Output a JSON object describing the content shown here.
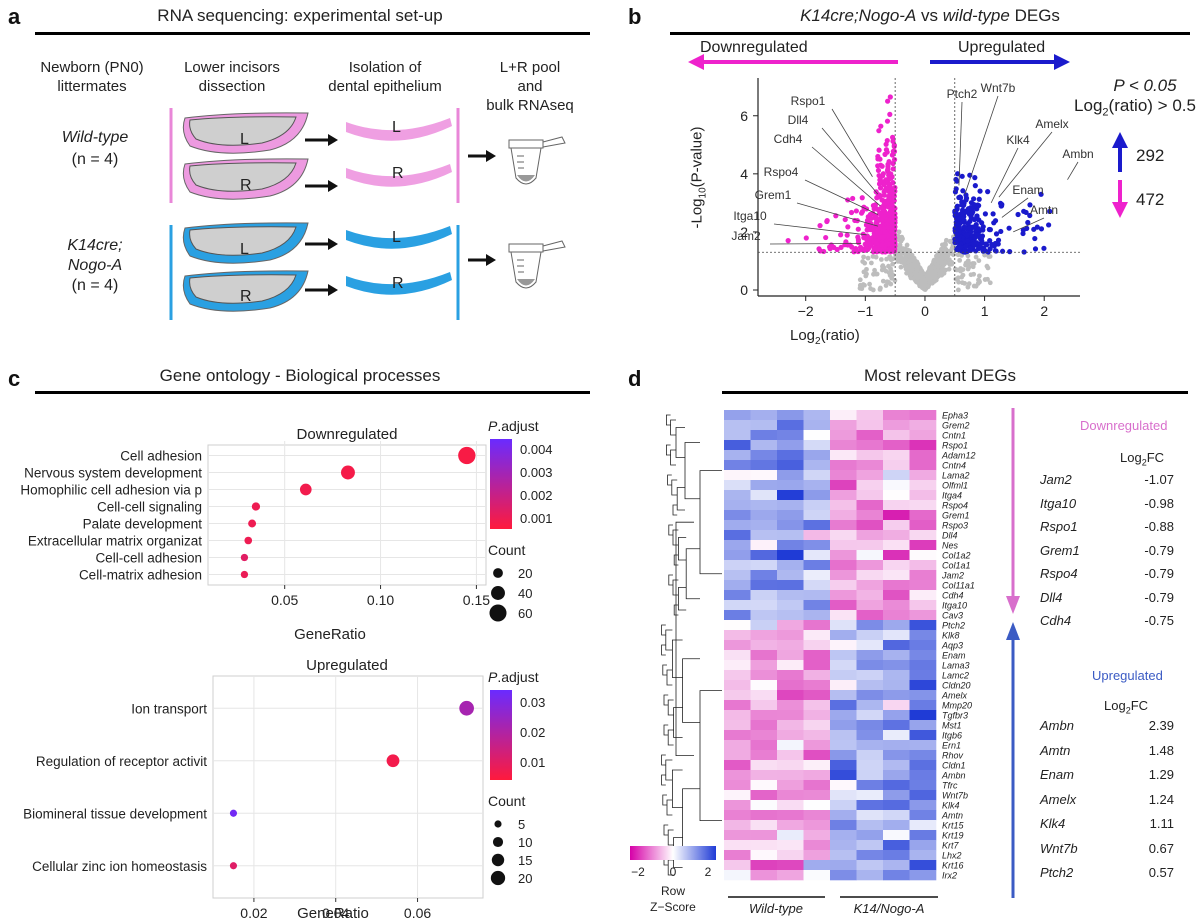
{
  "panel_a": {
    "letter": "a",
    "title": "RNA sequencing: experimental set-up",
    "columns": [
      {
        "line1": "Newborn (PN0)",
        "line2": "littermates"
      },
      {
        "line1": "Lower incisors",
        "line2": "dissection"
      },
      {
        "line1": "Isolation of",
        "line2": "dental epithelium"
      },
      {
        "line1": "L+R pool",
        "line2": "and",
        "line3": "bulk RNAseq"
      }
    ],
    "groups": [
      {
        "name": "Wild-type",
        "n": "(n = 4)",
        "color": "#e987d8"
      },
      {
        "name_line1": "K14cre;",
        "name_line2": "Nogo-A",
        "n": "(n = 4)",
        "color": "#2aa0e2"
      }
    ],
    "left_label": "L",
    "right_label": "R"
  },
  "panel_b": {
    "letter": "b",
    "title_part1": "K14cre;Nogo-A",
    "title_part2": "vs",
    "title_part3": "wild-type",
    "title_part4": "DEGs",
    "down_label": "Downregulated",
    "up_label": "Upregulated",
    "stats_p": "P < 0.05",
    "stats_ratio_base": "Log",
    "stats_ratio_sub": "2",
    "stats_ratio_rest": "(ratio) > 0.5",
    "up_count": "292",
    "down_count": "472",
    "down_color": "#ee22cc",
    "up_color": "#1a1acc",
    "ns_color": "#bdbdbd"
  },
  "chart_data": [
    {
      "type": "scatter",
      "name": "volcano",
      "xlabel_base": "Log",
      "xlabel_sub": "2",
      "xlabel_rest": "(ratio)",
      "ylabel_prefix": "-Log",
      "ylabel_sub": "10",
      "ylabel_rest": "(P-value)",
      "xlim": [
        -2.8,
        2.6
      ],
      "ylim": [
        0,
        7.3
      ],
      "xticks": [
        -2,
        -1,
        0,
        1,
        2
      ],
      "xtick_labels": [
        "−2",
        "−1",
        "0",
        "1",
        "2"
      ],
      "yticks": [
        0,
        2,
        4,
        6
      ],
      "ytick_labels": [
        "0",
        "2",
        "4",
        "6"
      ],
      "thresholds": {
        "x": [
          -0.5,
          0.5
        ],
        "y": 1.3
      },
      "labeled_down": [
        {
          "gene": "Rspo1",
          "x": -0.88,
          "y": 3.9
        },
        {
          "gene": "Dll4",
          "x": -0.79,
          "y": 3.3
        },
        {
          "gene": "Cdh4",
          "x": -0.75,
          "y": 2.9
        },
        {
          "gene": "Rspo4",
          "x": -0.79,
          "y": 2.6
        },
        {
          "gene": "Grem1",
          "x": -0.79,
          "y": 2.2
        },
        {
          "gene": "Itga10",
          "x": -0.98,
          "y": 1.9
        },
        {
          "gene": "Jam2",
          "x": -1.07,
          "y": 1.6
        }
      ],
      "labeled_up": [
        {
          "gene": "Ptch2",
          "x": 0.57,
          "y": 3.6
        },
        {
          "gene": "Wnt7b",
          "x": 0.67,
          "y": 3.3
        },
        {
          "gene": "Klk4",
          "x": 1.11,
          "y": 3.0
        },
        {
          "gene": "Amelx",
          "x": 1.24,
          "y": 3.2
        },
        {
          "gene": "Ambn",
          "x": 2.39,
          "y": 3.8
        },
        {
          "gene": "Enam",
          "x": 1.29,
          "y": 2.5
        },
        {
          "gene": "Amtn",
          "x": 1.48,
          "y": 2.0
        }
      ]
    },
    {
      "type": "scatter",
      "name": "go_downregulated",
      "title": "Downregulated",
      "xlabel": "GeneRatio",
      "xlim": [
        0.01,
        0.155
      ],
      "xticks": [
        0.05,
        0.1,
        0.15
      ],
      "xtick_labels": [
        "0.05",
        "0.10",
        "0.15"
      ],
      "categories": [
        "Cell adhesion",
        "Nervous system development",
        "Homophilic cell adhesion via p",
        "Cell-cell signaling",
        "Palate development",
        "Extracellular matrix organizat",
        "Cell-cell adhesion",
        "Cell-matrix adhesion"
      ],
      "gene_ratio": [
        0.145,
        0.083,
        0.061,
        0.035,
        0.033,
        0.031,
        0.029,
        0.029
      ],
      "count": [
        62,
        40,
        28,
        14,
        13,
        12,
        11,
        11
      ],
      "p_adjust": [
        0.0002,
        0.0003,
        0.0004,
        0.0005,
        0.0005,
        0.0005,
        0.0009,
        0.0006
      ],
      "color_legend_title_base": "P",
      "color_legend_title_rest": ".adjust",
      "color_ticks": [
        "0.004",
        "0.003",
        "0.002",
        "0.001"
      ],
      "color_range": [
        0,
        0.0045
      ],
      "size_legend_title": "Count",
      "size_legend": [
        "20",
        "40",
        "60"
      ]
    },
    {
      "type": "scatter",
      "name": "go_upregulated",
      "title": "Upregulated",
      "xlabel": "GeneRatio",
      "xlim": [
        0.01,
        0.076
      ],
      "xticks": [
        0.02,
        0.04,
        0.06
      ],
      "xtick_labels": [
        "0.02",
        "0.04",
        "0.06"
      ],
      "categories": [
        "Ion transport",
        "Regulation of receptor activit",
        "Biomineral tissue development",
        "Cellular zinc ion homeostasis"
      ],
      "gene_ratio": [
        0.072,
        0.054,
        0.015,
        0.015
      ],
      "count": [
        21,
        16,
        5,
        5
      ],
      "p_adjust": [
        0.022,
        0.003,
        0.035,
        0.008
      ],
      "color_legend_title_base": "P",
      "color_legend_title_rest": ".adjust",
      "color_ticks": [
        "0.03",
        "0.02",
        "0.01"
      ],
      "color_range": [
        0,
        0.037
      ],
      "size_legend_title": "Count",
      "size_legend": [
        "5",
        "10",
        "15",
        "20"
      ]
    },
    {
      "type": "heatmap",
      "name": "most_relevant_degs",
      "title": "Most relevant DEGs",
      "rows": [
        "Epha3",
        "Grem2",
        "Cntn1",
        "Rspo1",
        "Adam12",
        "Cntn4",
        "Lama2",
        "Olfml1",
        "Itga4",
        "Rspo4",
        "Grem1",
        "Rspo3",
        "Dll4",
        "Nes",
        "Col1a2",
        "Col1a1",
        "Jam2",
        "Col11a1",
        "Cdh4",
        "Itga10",
        "Cav3",
        "Ptch2",
        "Klk8",
        "Aqp3",
        "Enam",
        "Lama3",
        "Lamc2",
        "Cldn20",
        "Amelx",
        "Mmp20",
        "Tgfbr3",
        "Mst1",
        "Itgb6",
        "Ern1",
        "Rhov",
        "Cldn1",
        "Ambn",
        "Tfrc",
        "Wnt7b",
        "Klk4",
        "Amtn",
        "Krt15",
        "Krt19",
        "Krt7",
        "Lhx2",
        "Krt16",
        "Irx2"
      ],
      "n_down_rows": 21,
      "column_groups": [
        "Wild-type",
        "K14/Nogo-A"
      ],
      "colorbar_ticks": [
        "−2",
        "0",
        "2"
      ],
      "colorbar_label_line1": "Row",
      "colorbar_label_line2": "Z−Score",
      "colorscale": [
        "#d600a8",
        "#ffffff",
        "#1f3bd6"
      ]
    }
  ],
  "panel_c": {
    "letter": "c",
    "title": "Gene ontology - Biological processes"
  },
  "panel_d": {
    "letter": "d",
    "down_title": "Downregulated",
    "up_title": "Upregulated",
    "fc_header_base": "Log",
    "fc_header_sub": "2",
    "fc_header_rest": "FC",
    "down_table": [
      {
        "gene": "Jam2",
        "fc": "-1.07"
      },
      {
        "gene": "Itga10",
        "fc": "-0.98"
      },
      {
        "gene": "Rspo1",
        "fc": "-0.88"
      },
      {
        "gene": "Grem1",
        "fc": "-0.79"
      },
      {
        "gene": "Rspo4",
        "fc": "-0.79"
      },
      {
        "gene": "Dll4",
        "fc": "-0.79"
      },
      {
        "gene": "Cdh4",
        "fc": "-0.75"
      }
    ],
    "up_table": [
      {
        "gene": "Ambn",
        "fc": "2.39"
      },
      {
        "gene": "Amtn",
        "fc": "1.48"
      },
      {
        "gene": "Enam",
        "fc": "1.29"
      },
      {
        "gene": "Amelx",
        "fc": "1.24"
      },
      {
        "gene": "Klk4",
        "fc": "1.11"
      },
      {
        "gene": "Wnt7b",
        "fc": "0.67"
      },
      {
        "gene": "Ptch2",
        "fc": "0.57"
      }
    ],
    "down_color": "#d86fcc",
    "up_color": "#3b5bc4"
  }
}
